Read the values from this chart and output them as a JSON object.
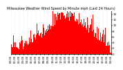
{
  "title": "Milwaukee Weather Wind Speed by Minute mph (Last 24 Hours)",
  "bar_color": "#ff0000",
  "background_color": "#ffffff",
  "grid_color": "#cccccc",
  "ylim": [
    0,
    15
  ],
  "yticks": [
    0,
    2,
    4,
    6,
    8,
    10,
    12,
    14
  ],
  "num_bars": 1440,
  "title_fontsize": 3.5,
  "tick_fontsize": 2.8
}
